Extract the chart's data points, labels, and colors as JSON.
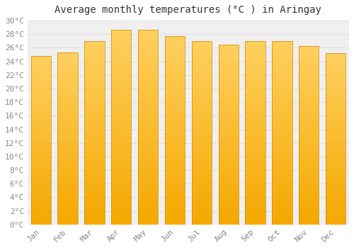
{
  "title": "Average monthly temperatures (°C ) in Aringay",
  "months": [
    "Jan",
    "Feb",
    "Mar",
    "Apr",
    "May",
    "Jun",
    "Jul",
    "Aug",
    "Sep",
    "Oct",
    "Nov",
    "Dec"
  ],
  "values": [
    24.8,
    25.3,
    27.0,
    28.7,
    28.7,
    27.7,
    27.0,
    26.5,
    27.0,
    27.0,
    26.3,
    25.2
  ],
  "bar_color_light": "#FFB833",
  "bar_color_dark": "#F5A800",
  "bar_edge_color": "#CC8800",
  "ylim": [
    0,
    30
  ],
  "ytick_step": 2,
  "background_color": "#ffffff",
  "plot_bg_color": "#f0f0f0",
  "grid_color": "#e0e0e0",
  "title_fontsize": 10,
  "tick_fontsize": 8,
  "font_family": "monospace",
  "title_color": "#333333",
  "tick_color": "#888888"
}
